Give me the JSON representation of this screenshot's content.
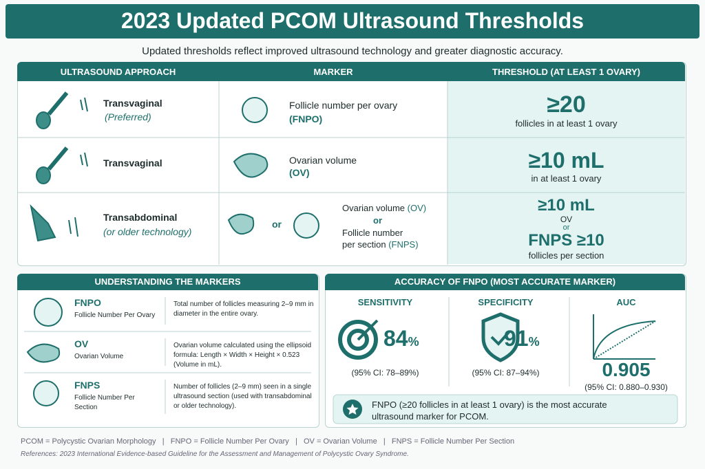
{
  "header": {
    "title": "2023 Updated PCOM Ultrasound Thresholds",
    "subtitle": "Updated thresholds reflect improved ultrasound technology and greater diagnostic accuracy."
  },
  "table": {
    "headers": [
      "ULTRASOUND APPROACH",
      "MARKER",
      "THRESHOLD (AT LEAST 1 OVARY)"
    ],
    "rows": [
      {
        "approach": "Transvaginal",
        "approach_note": "(Preferred)",
        "marker": "Follicle number per ovary",
        "marker_abbr": "(FNPO)",
        "threshold": "≥20",
        "threshold_note": "follicles in at least 1 ovary"
      },
      {
        "approach": "Transvaginal",
        "marker": "Ovarian volume",
        "marker_abbr": "(OV)",
        "threshold": "≥10 mL",
        "threshold_note": "in at least 1 ovary"
      },
      {
        "approach": "Transabdominal",
        "approach_note": "(or older technology)",
        "icon_or": "or",
        "marker_1": "Ovarian volume",
        "marker_1_abbr": "(OV)",
        "marker_or": "or",
        "marker_2": "Follicle number",
        "marker_2b": "per section",
        "marker_2_abbr": "(FNPS)",
        "threshold": "≥10 mL",
        "threshold_note": "OV",
        "threshold_or": "or",
        "threshold_2": "FNPS ≥10",
        "threshold_2_note": "follicles per section"
      }
    ]
  },
  "markers": {
    "title": "UNDERSTANDING THE MARKERS",
    "items": [
      {
        "abbr": "FNPO",
        "name": "Follicle Number Per Ovary",
        "desc": "Total number of follicles measuring 2–9 mm in diameter in the entire ovary."
      },
      {
        "abbr": "OV",
        "name": "Ovarian Volume",
        "desc": "Ovarian volume calculated using the ellipsoid formula: Length × Width × Height × 0.523 (Volume in mL)."
      },
      {
        "abbr": "FNPS",
        "name": "Follicle Number Per Section",
        "desc": "Number of follicles (2–9 mm) seen in a single ultrasound section (used with transabdominal or older technology)."
      }
    ]
  },
  "accuracy": {
    "title": "ACCURACY OF FNPO (MOST ACCURATE MARKER)",
    "metrics": [
      {
        "label": "SENSITIVITY",
        "value": "84",
        "unit": "%",
        "ci": "(95% CI: 78–89%)"
      },
      {
        "label": "SPECIFICITY",
        "value": "91",
        "unit": "%",
        "ci": "(95% CI: 87–94%)"
      },
      {
        "label": "AUC",
        "value": "0.905",
        "ci": "(95% CI: 0.880–0.930)"
      }
    ],
    "note": "FNPO (≥20 follicles in at least 1 ovary) is the most accurate ultrasound marker for PCOM."
  },
  "footer": {
    "abbreviations": "PCOM = Polycystic Ovarian Morphology   |   FNPO = Follicle Number Per Ovary   |   OV = Ovarian Volume   |   FNPS = Follicle Number Per Section",
    "references": "References: 2023 International Evidence-based Guideline for the Assessment and Management of Polycystic Ovary Syndrome."
  }
}
